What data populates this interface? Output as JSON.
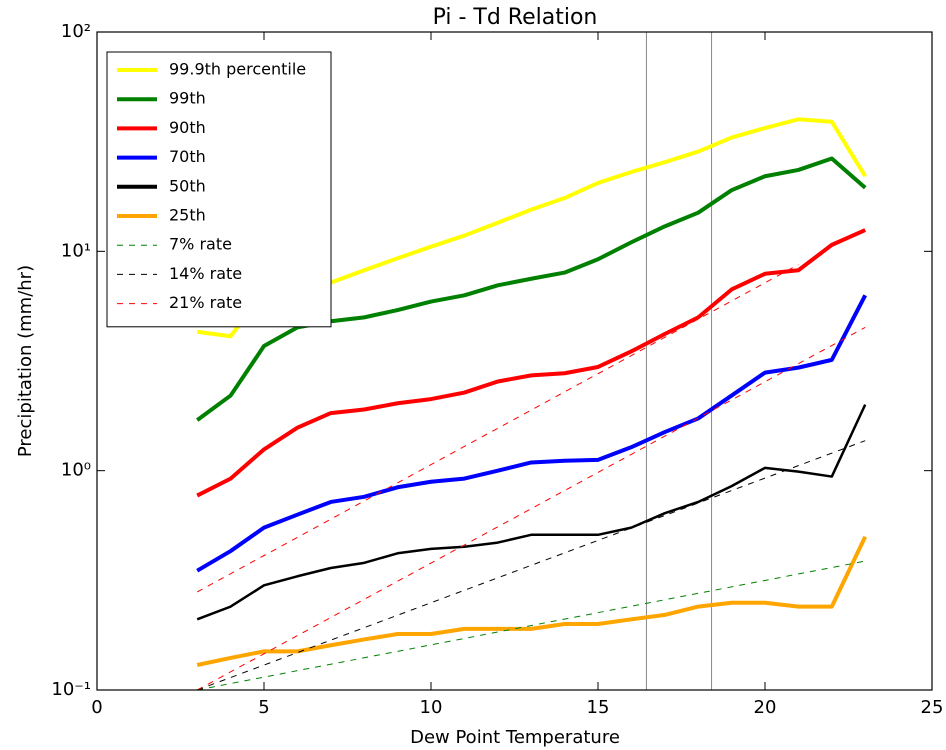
{
  "chart_data": {
    "type": "line",
    "title": "Pi - Td  Relation",
    "x_label": "Dew Point Temperature",
    "y_label": "Precipitation (mm/hr)",
    "log_y": true,
    "xlim": [
      0,
      25
    ],
    "xticks": [
      0,
      5,
      10,
      15,
      20,
      25
    ],
    "ylim": [
      0.1,
      100
    ],
    "yticks": [
      {
        "value": 0.1,
        "label": "10⁻¹"
      },
      {
        "value": 1,
        "label": "10⁰"
      },
      {
        "value": 10,
        "label": "10¹"
      },
      {
        "value": 100,
        "label": "10²"
      }
    ],
    "vlines": [
      16.45,
      18.4
    ],
    "legend": "upper left",
    "x": [
      3,
      4,
      5,
      6,
      7,
      8,
      9,
      10,
      11,
      12,
      13,
      14,
      15,
      16,
      17,
      18,
      19,
      20,
      21,
      22,
      23
    ],
    "series": [
      {
        "name": "99.9th percentile",
        "color": "#ffff00",
        "values": [
          4.3,
          4.1,
          6.5,
          7.5,
          7.2,
          8.2,
          9.3,
          10.5,
          11.8,
          13.5,
          15.5,
          17.5,
          20.5,
          23,
          25.5,
          28.5,
          33,
          36.5,
          40,
          39,
          22
        ]
      },
      {
        "name": "99th",
        "color": "#008000",
        "values": [
          1.7,
          2.2,
          3.7,
          4.5,
          4.8,
          5.0,
          5.4,
          5.9,
          6.3,
          7.0,
          7.5,
          8.0,
          9.2,
          11,
          13,
          15,
          19,
          22,
          23.5,
          26.5,
          19.5
        ]
      },
      {
        "name": "90th",
        "color": "#ff0000",
        "values": [
          0.77,
          0.92,
          1.25,
          1.57,
          1.83,
          1.9,
          2.03,
          2.12,
          2.27,
          2.55,
          2.72,
          2.78,
          2.97,
          3.5,
          4.2,
          5.0,
          6.7,
          7.9,
          8.2,
          10.7,
          12.5
        ]
      },
      {
        "name": "70th",
        "color": "#0000ff",
        "values": [
          0.35,
          0.43,
          0.55,
          0.63,
          0.72,
          0.76,
          0.84,
          0.89,
          0.92,
          1.0,
          1.09,
          1.11,
          1.12,
          1.28,
          1.5,
          1.73,
          2.2,
          2.8,
          2.95,
          3.2,
          6.3
        ]
      },
      {
        "name": "50th",
        "color": "#000000",
        "values": [
          0.21,
          0.24,
          0.3,
          0.33,
          0.36,
          0.38,
          0.42,
          0.44,
          0.45,
          0.47,
          0.51,
          0.51,
          0.51,
          0.55,
          0.64,
          0.72,
          0.85,
          1.03,
          0.99,
          0.94,
          2.0
        ]
      },
      {
        "name": "25th",
        "color": "#ffa500",
        "values": [
          0.13,
          0.14,
          0.15,
          0.15,
          0.16,
          0.17,
          0.18,
          0.18,
          0.19,
          0.19,
          0.19,
          0.2,
          0.2,
          0.21,
          0.22,
          0.24,
          0.25,
          0.25,
          0.24,
          0.24,
          0.5
        ]
      },
      {
        "name": "7% rate",
        "color": "#008000",
        "dashed": true,
        "x": [
          3,
          23
        ],
        "values": [
          0.1,
          0.387
        ]
      },
      {
        "name": "14% rate",
        "color": "#000000",
        "dashed": true,
        "x": [
          3,
          23
        ],
        "values": [
          0.1,
          1.37
        ]
      },
      {
        "name": "21% rate",
        "color": "#ff0000",
        "dashed": true,
        "x": [
          3,
          23
        ],
        "values": [
          0.1,
          4.5
        ]
      },
      {
        "color": "#ff0000",
        "dashed": true,
        "x": [
          3,
          21
        ],
        "values": [
          0.28,
          8.7
        ]
      }
    ]
  }
}
